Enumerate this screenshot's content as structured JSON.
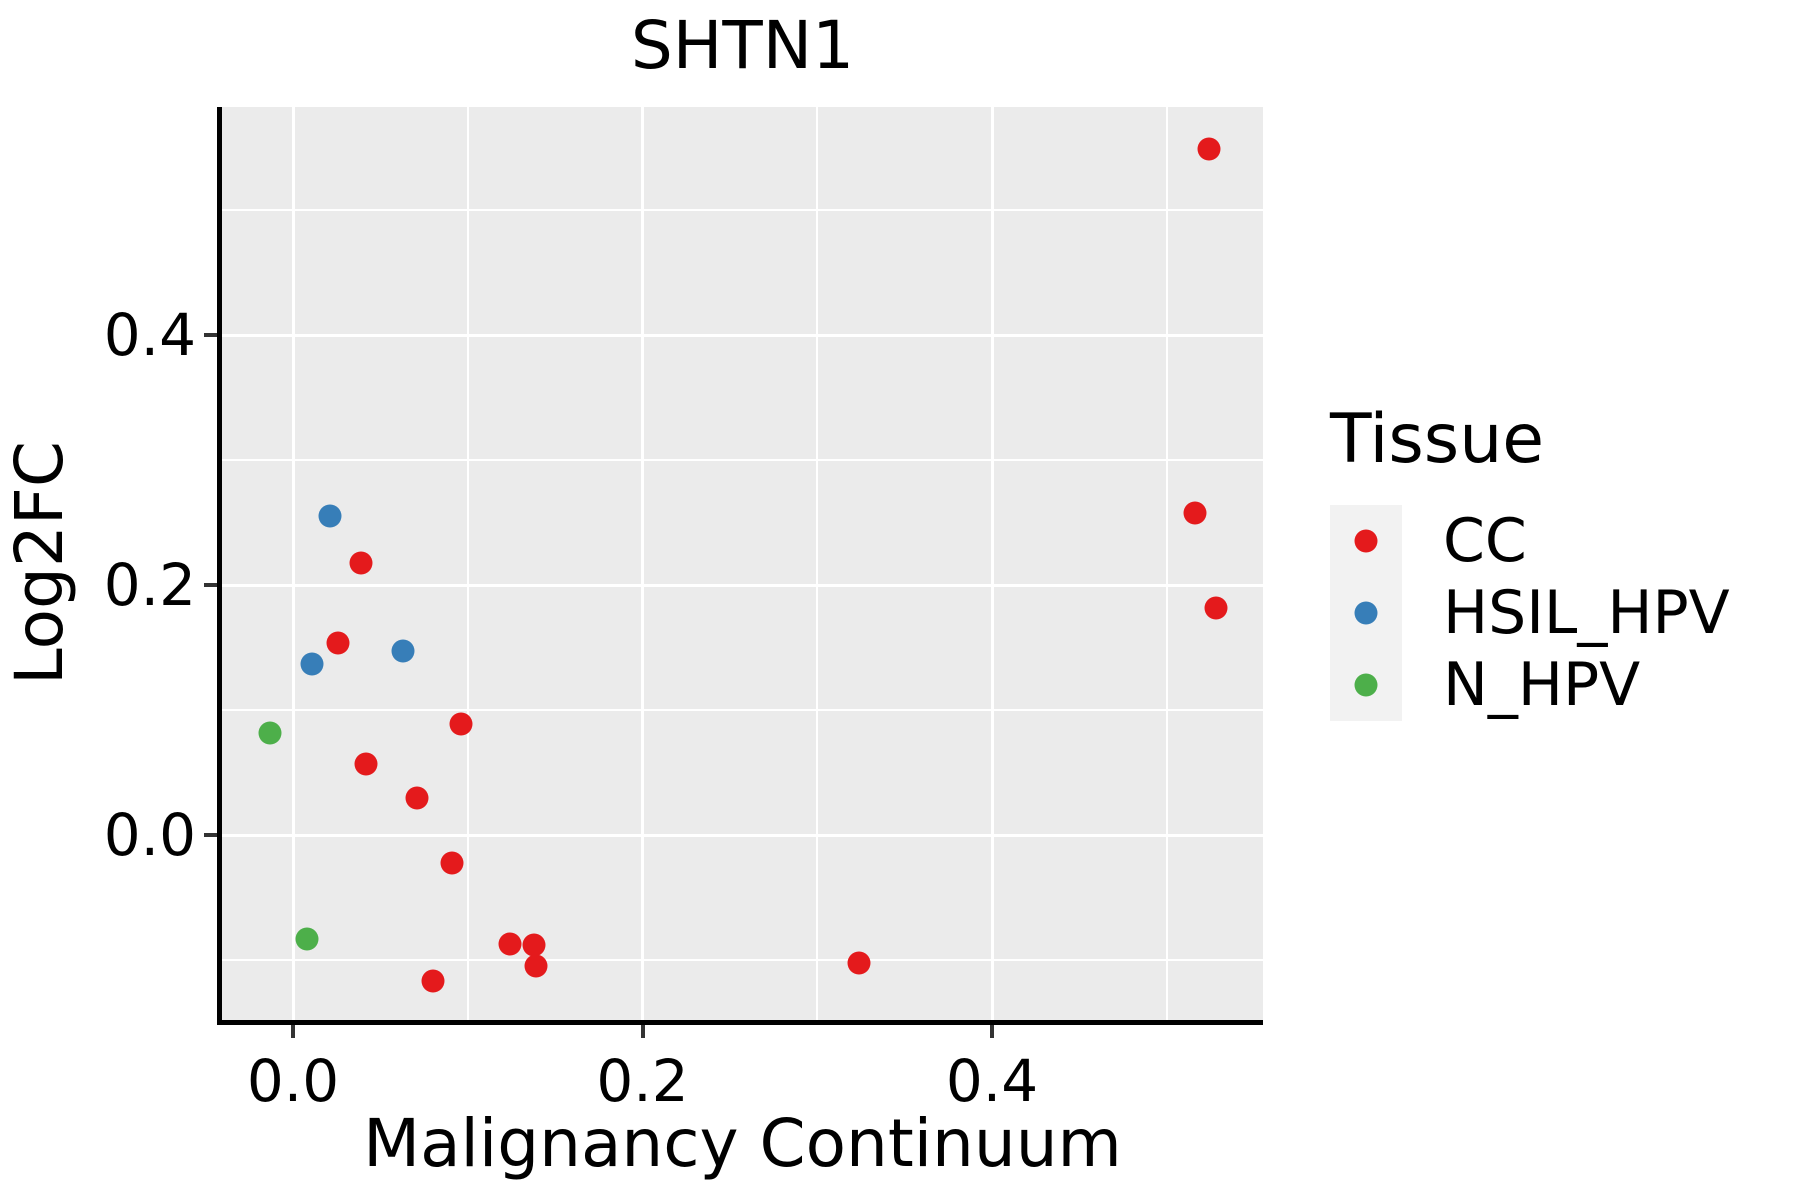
{
  "title": "SHTN1",
  "legend": {
    "title": "Tissue",
    "items": [
      {
        "label": "CC",
        "color": "#E41A1C"
      },
      {
        "label": "HSIL_HPV",
        "color": "#377EB8"
      },
      {
        "label": "N_HPV",
        "color": "#4DAF4A"
      }
    ]
  },
  "colors": {
    "panel_background": "#EBEBEB",
    "grid": "#FFFFFF",
    "axis": "#000000",
    "tick": "#333333",
    "legend_key_background": "#F2F2F2",
    "cc_red": "#E41A1C",
    "hsil_hpv_blue": "#377EB8",
    "n_hpv_green": "#4DAF4A"
  },
  "chart_data": {
    "type": "scatter",
    "title": "SHTN1",
    "xlabel": "Malignancy Continuum",
    "ylabel": "Log2FC",
    "xlim": [
      -0.041,
      0.555
    ],
    "ylim": [
      -0.148,
      0.582
    ],
    "x_ticks": [
      0.0,
      0.2,
      0.4
    ],
    "x_tick_labels": [
      "0.0",
      "0.2",
      "0.4"
    ],
    "y_ticks": [
      0.0,
      0.2,
      0.4
    ],
    "y_tick_labels": [
      "0.0",
      "0.2",
      "0.4"
    ],
    "x_minor_ticks": [
      0.1,
      0.3,
      0.5
    ],
    "y_minor_ticks": [
      -0.1,
      0.1,
      0.3,
      0.5
    ],
    "grid": true,
    "legend_position": "right",
    "legend_title": "Tissue",
    "series": [
      {
        "name": "CC",
        "color": "#E41A1C",
        "points": [
          [
            0.524,
            0.549
          ],
          [
            0.516,
            0.258
          ],
          [
            0.528,
            0.182
          ],
          [
            0.039,
            0.218
          ],
          [
            0.026,
            0.154
          ],
          [
            0.096,
            0.089
          ],
          [
            0.042,
            0.057
          ],
          [
            0.071,
            0.03
          ],
          [
            0.091,
            -0.022
          ],
          [
            0.08,
            -0.117
          ],
          [
            0.124,
            -0.087
          ],
          [
            0.138,
            -0.088
          ],
          [
            0.139,
            -0.105
          ],
          [
            0.324,
            -0.102
          ]
        ]
      },
      {
        "name": "HSIL_HPV",
        "color": "#377EB8",
        "points": [
          [
            0.021,
            0.255
          ],
          [
            0.011,
            0.137
          ],
          [
            0.063,
            0.147
          ]
        ]
      },
      {
        "name": "N_HPV",
        "color": "#4DAF4A",
        "points": [
          [
            -0.013,
            0.082
          ],
          [
            0.008,
            -0.083
          ]
        ]
      }
    ]
  }
}
